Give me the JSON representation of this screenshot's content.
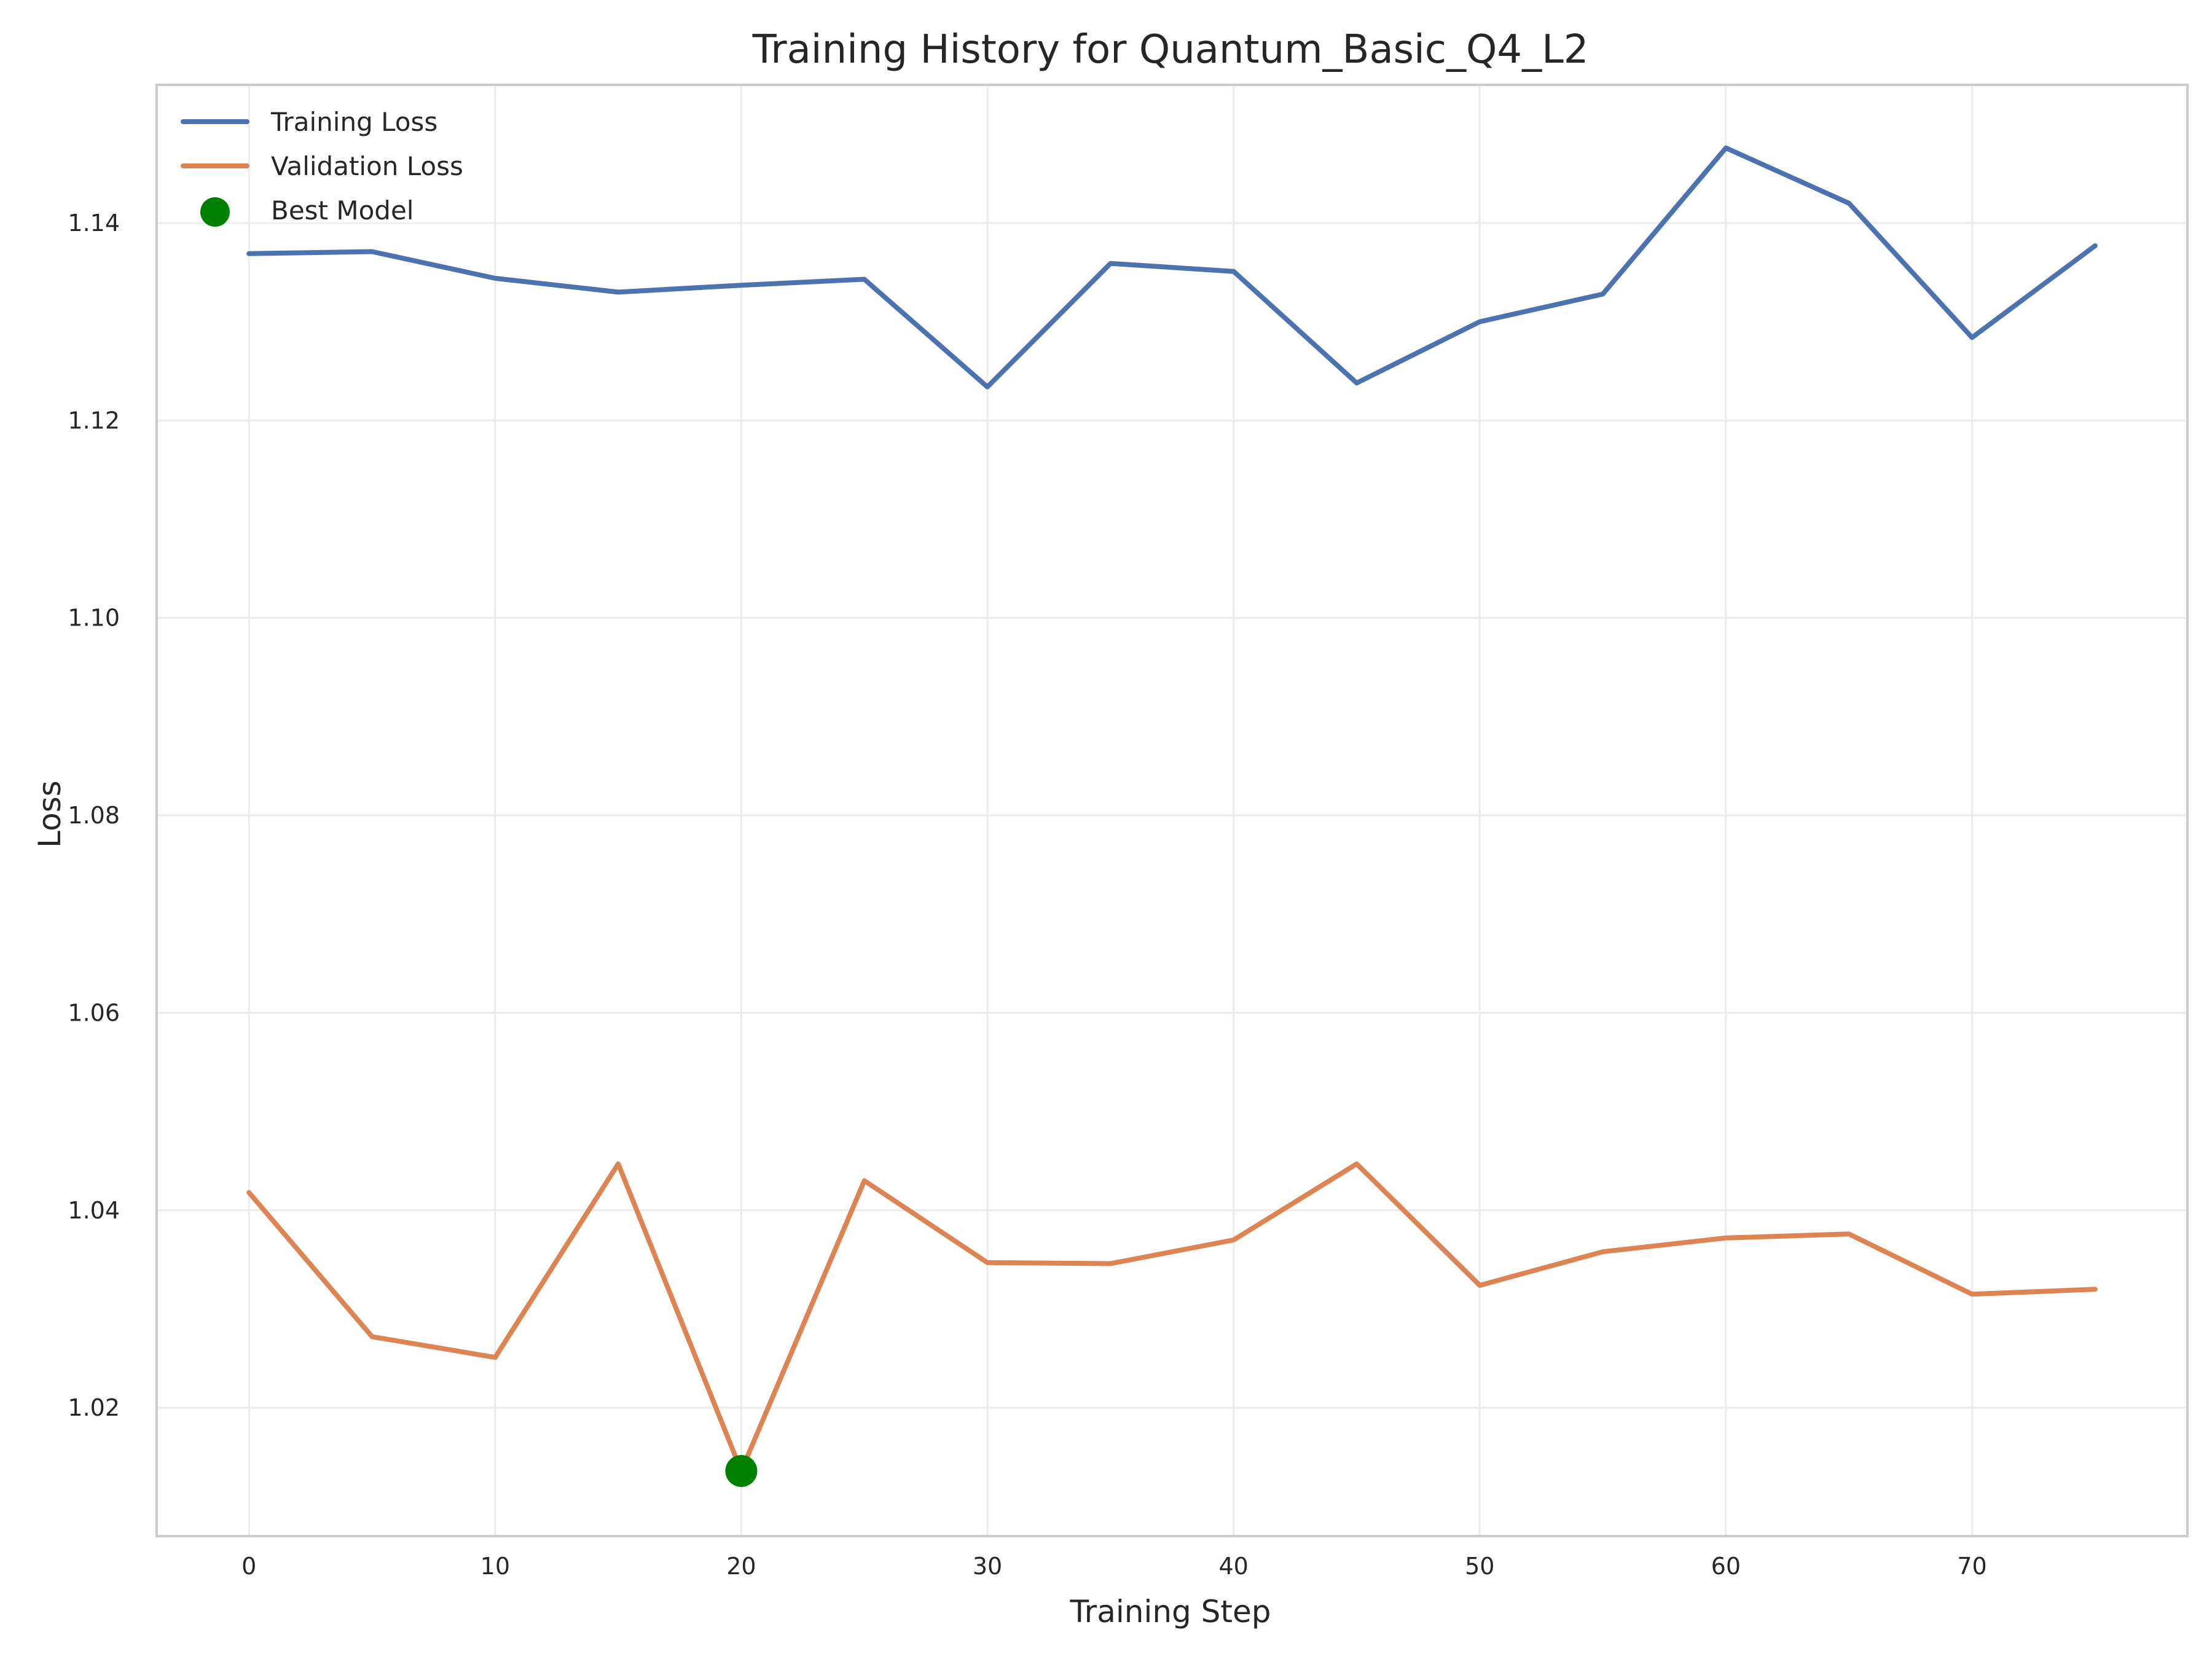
{
  "chart_data": {
    "type": "line",
    "title": "Training History for Quantum_Basic_Q4_L2",
    "xlabel": "Training Step",
    "ylabel": "Loss",
    "x": [
      0,
      5,
      10,
      15,
      20,
      25,
      30,
      35,
      40,
      45,
      50,
      55,
      60,
      65,
      70,
      75
    ],
    "xlim": [
      -3.75,
      78.75
    ],
    "ylim": [
      1.007,
      1.154
    ],
    "xticks": [
      0,
      10,
      20,
      30,
      40,
      50,
      60,
      70
    ],
    "yticks": [
      1.02,
      1.04,
      1.06,
      1.08,
      1.1,
      1.12,
      1.14
    ],
    "xtick_labels": [
      "0",
      "10",
      "20",
      "30",
      "40",
      "50",
      "60",
      "70"
    ],
    "ytick_labels": [
      "1.02",
      "1.04",
      "1.06",
      "1.08",
      "1.10",
      "1.12",
      "1.14"
    ],
    "grid": true,
    "legend_position": "top-left",
    "series": [
      {
        "name": "Training Loss",
        "color": "#4c72b0",
        "values": [
          1.1369,
          1.1371,
          1.1344,
          1.133,
          1.1337,
          1.1343,
          1.1234,
          1.1359,
          1.1351,
          1.1238,
          1.13,
          1.1328,
          1.1476,
          1.142,
          1.1284,
          1.1377
        ]
      },
      {
        "name": "Validation Loss",
        "color": "#dd8452",
        "values": [
          1.0418,
          1.0272,
          1.0251,
          1.0447,
          1.0136,
          1.043,
          1.0347,
          1.0346,
          1.037,
          1.0447,
          1.0324,
          1.0358,
          1.0372,
          1.0376,
          1.0315,
          1.032
        ]
      }
    ],
    "best_model": {
      "name": "Best Model",
      "x": 20,
      "y": 1.0136,
      "color": "#008000"
    }
  }
}
